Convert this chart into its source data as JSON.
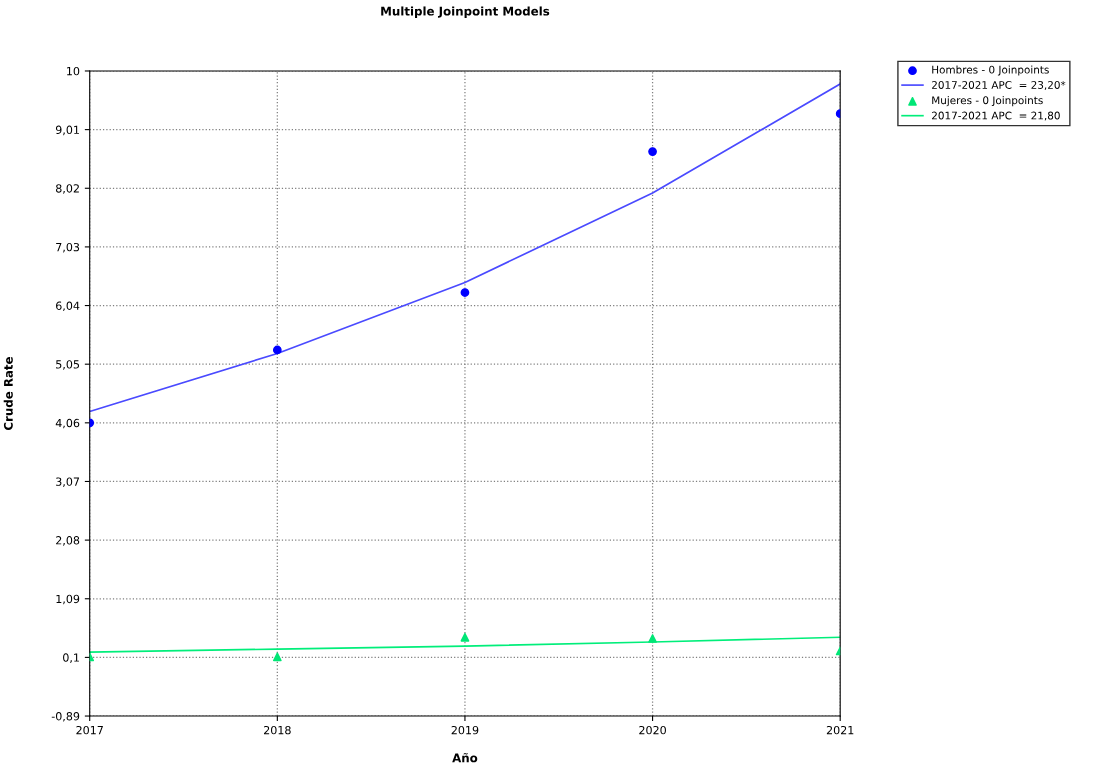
{
  "chart_data": {
    "type": "line",
    "title": "Multiple Joinpoint Models",
    "xlabel": "Año",
    "ylabel": "Crude Rate",
    "x": [
      2017,
      2018,
      2019,
      2020,
      2021
    ],
    "series": [
      {
        "name": "Hombres - 0 Joinpoints",
        "type": "scatter",
        "marker": "circle",
        "color": "#0000ff",
        "values": [
          4.06,
          5.29,
          6.26,
          8.64,
          9.28
        ]
      },
      {
        "name": "2017-2021 APC  = 23,20*",
        "marker": "none",
        "color": "#4a4aff",
        "values": [
          4.25,
          5.23,
          6.43,
          7.94,
          9.78
        ]
      },
      {
        "name": "Mujeres - 0 Joinpoints",
        "type": "scatter",
        "marker": "triangle",
        "color": "#00e676",
        "values": [
          0.11,
          0.11,
          0.44,
          0.42,
          0.21
        ]
      },
      {
        "name": "2017-2021 APC  = 21,80",
        "marker": "none",
        "color": "#00ee7a",
        "values": [
          0.19,
          0.24,
          0.29,
          0.36,
          0.44
        ]
      }
    ],
    "xlim": [
      2017,
      2021
    ],
    "xticks": [
      2017,
      2018,
      2019,
      2020,
      2021
    ],
    "ylim": [
      -0.89,
      10
    ],
    "yticks": [
      {
        "value": -0.89,
        "label": "-0,89"
      },
      {
        "value": 0.1,
        "label": "0,1"
      },
      {
        "value": 1.09,
        "label": "1,09"
      },
      {
        "value": 2.08,
        "label": "2,08"
      },
      {
        "value": 3.07,
        "label": "3,07"
      },
      {
        "value": 4.06,
        "label": "4,06"
      },
      {
        "value": 5.05,
        "label": "5,05"
      },
      {
        "value": 6.04,
        "label": "6,04"
      },
      {
        "value": 7.03,
        "label": "7,03"
      },
      {
        "value": 8.02,
        "label": "8,02"
      },
      {
        "value": 9.01,
        "label": "9,01"
      },
      10
    ],
    "grid": true,
    "legend": "top right"
  }
}
